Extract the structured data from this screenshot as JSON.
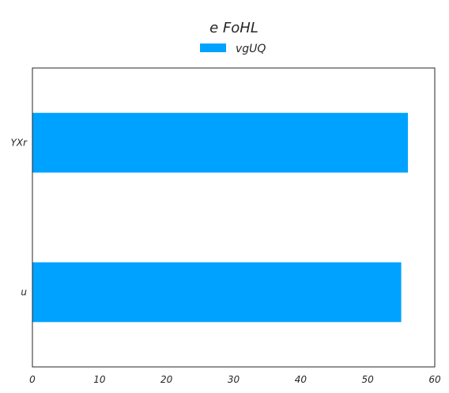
{
  "chart_data": {
    "type": "bar",
    "orientation": "horizontal",
    "title": "e FoHL",
    "xlabel": "",
    "ylabel": "",
    "categories": [
      "u",
      "YXr"
    ],
    "series": [
      {
        "name": "vgUQ",
        "values": [
          55,
          56
        ],
        "color": "#00a2ff"
      }
    ],
    "xlim": [
      0,
      60
    ],
    "x_ticks": [
      "0",
      "10",
      "20",
      "30",
      "40",
      "50",
      "60"
    ],
    "grid": false,
    "legend_position": "top-center",
    "frame_color": "#262626"
  }
}
